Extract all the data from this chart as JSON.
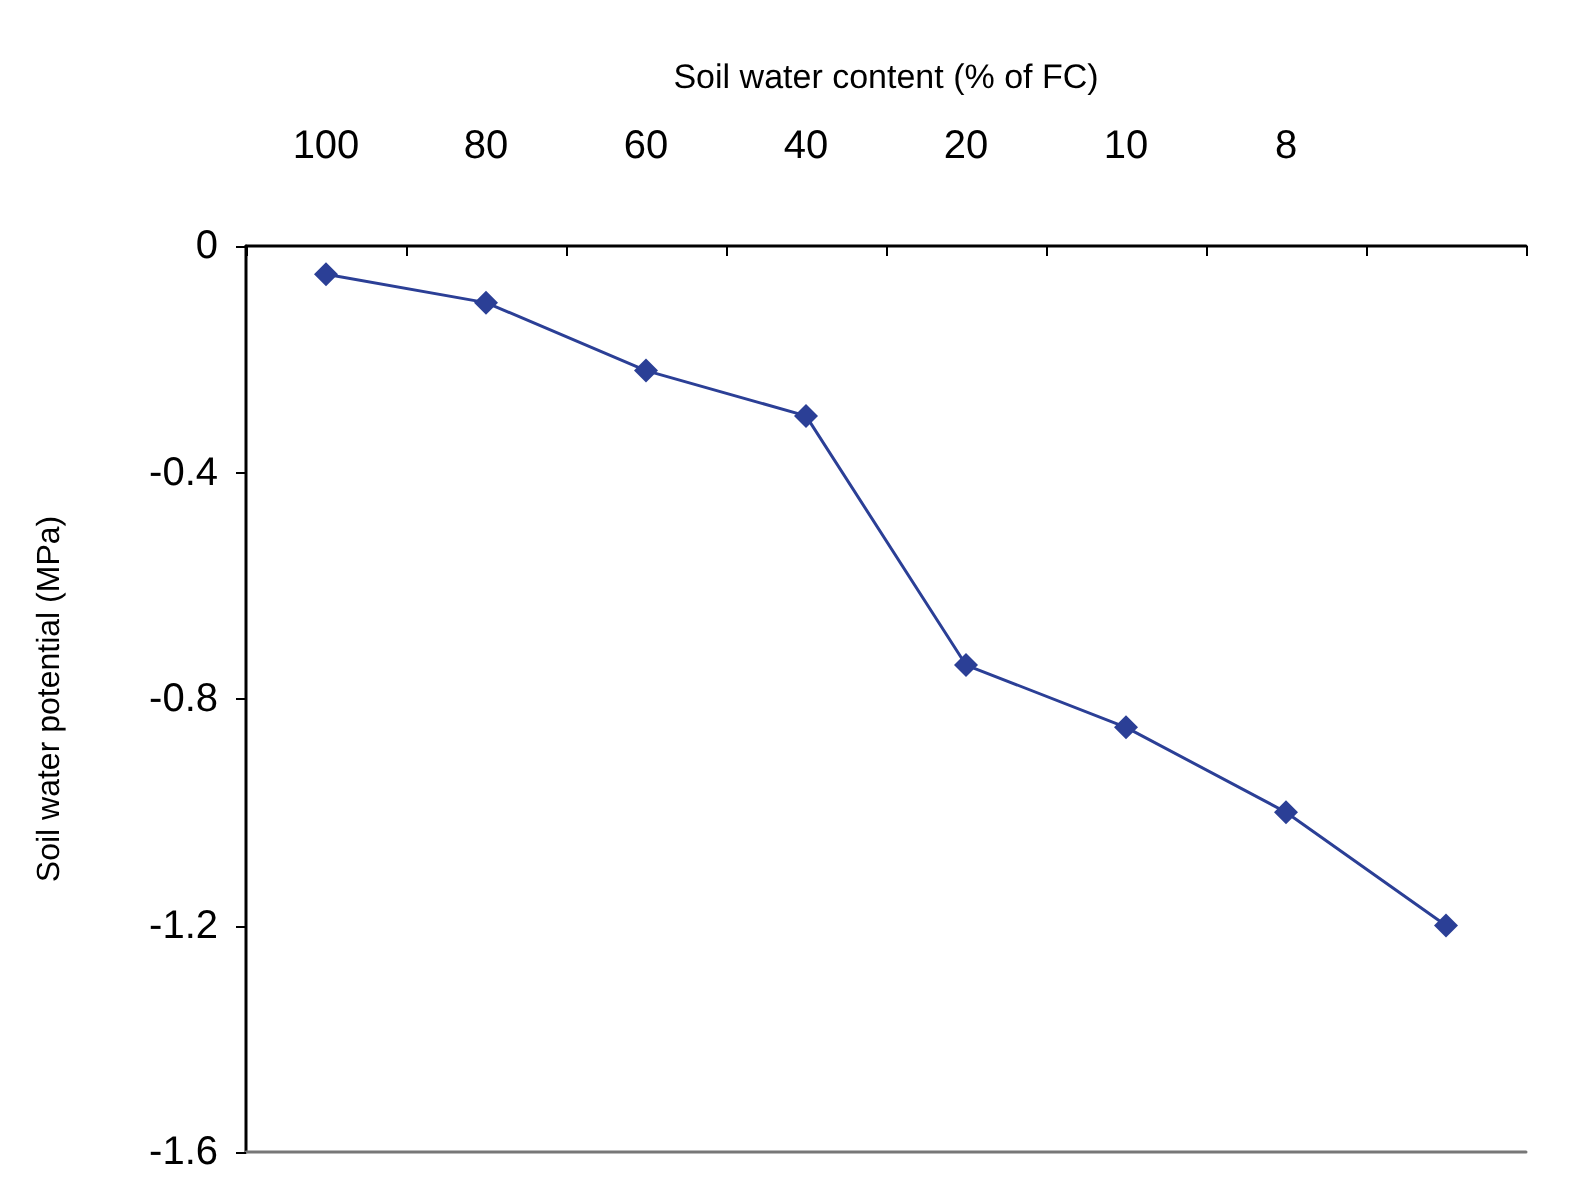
{
  "chart_data": {
    "type": "line",
    "xlabel": "Soil water content (% of FC)",
    "ylabel": "Soil water potential (MPa)",
    "categories": [
      "100",
      "80",
      "60",
      "40",
      "20",
      "10",
      "8",
      null
    ],
    "series": [
      {
        "color": "#2b3f96",
        "values": [
          -0.05,
          -0.1,
          -0.22,
          -0.3,
          -0.74,
          -0.85,
          -1.0,
          -1.2
        ]
      }
    ],
    "ylim": [
      -1.6,
      0
    ],
    "yticks": [
      0,
      -0.4,
      -0.8,
      -1.2,
      -1.6
    ],
    "grid": false,
    "marker": "diamond",
    "line_style": "solid"
  }
}
